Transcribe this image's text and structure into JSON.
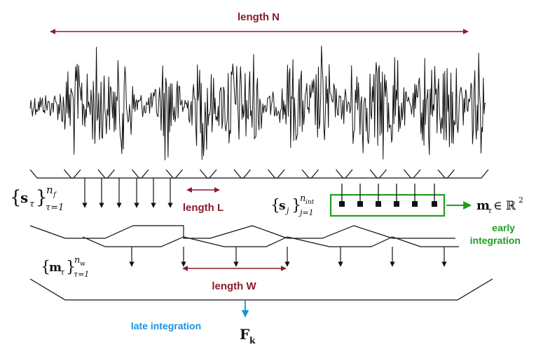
{
  "labels": {
    "length_n": "length N",
    "length_l": "length L",
    "length_w": "length W",
    "early": "early",
    "integration": "integration",
    "late_integration": "late integration"
  },
  "math": {
    "frames_set": {
      "brace_open": "{",
      "sym": "s",
      "sub": "τ",
      "brace_close": "}",
      "sup": "n",
      "sup_sub": "f",
      "lower": "τ=1"
    },
    "sub_set": {
      "brace_open": "{",
      "sym": "s",
      "sub": "j",
      "brace_close": "}",
      "sup": "n",
      "sup_sub": "int",
      "lower": "j=1"
    },
    "m_tau": {
      "sym": "m",
      "sub": "τ",
      "rel": "∈ ℝ",
      "sup": "2"
    },
    "windows_set": {
      "brace_open": "{",
      "sym": "m",
      "sub": "τ",
      "brace_close": "}",
      "sup": "n",
      "sup_sub": "w",
      "lower": "τ=1"
    },
    "result": {
      "sym": "F",
      "sub": "k"
    }
  },
  "colors": {
    "dark_red": "#8b1a2b",
    "green": "#1e9e1e",
    "blue": "#1a90e0",
    "black": "#111111"
  }
}
